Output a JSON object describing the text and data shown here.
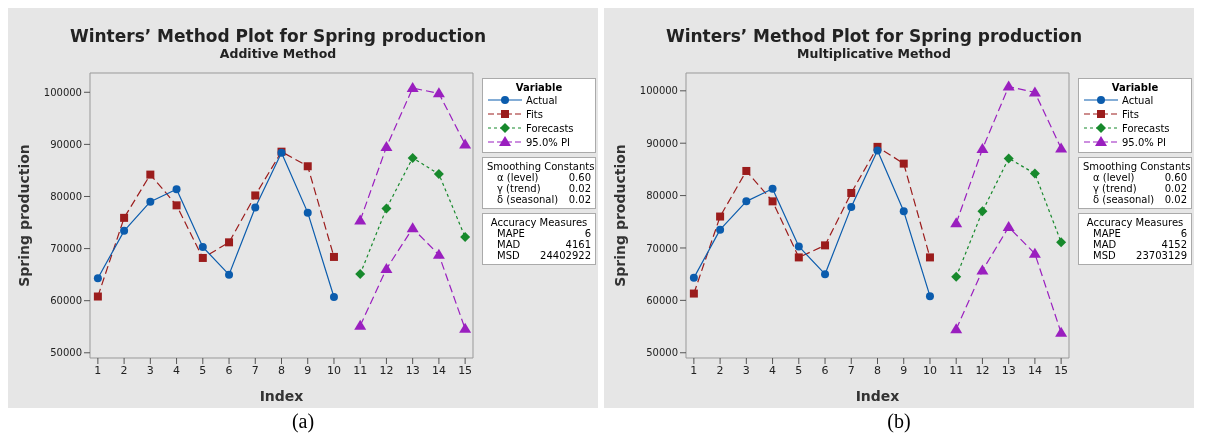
{
  "chart_data": [
    {
      "type": "line",
      "title": "Winters’ Method Plot for Spring production",
      "subtitle": "Additive Method",
      "xlabel": "Index",
      "ylabel": "Spring production",
      "legend_title": "Variable",
      "legend": "right",
      "xlim": [
        0.7,
        15.3
      ],
      "xticks": [
        1,
        2,
        3,
        4,
        5,
        6,
        7,
        8,
        9,
        10,
        11,
        12,
        13,
        14,
        15
      ],
      "ylim": [
        49000,
        103700
      ],
      "yticks": [
        50000,
        60000,
        70000,
        80000,
        90000,
        100000
      ],
      "series": [
        {
          "name": "Actual",
          "color": "#0b5cad",
          "marker": "circle",
          "line_style": "solid",
          "x": [
            1,
            2,
            3,
            4,
            5,
            6,
            7,
            8,
            9,
            10
          ],
          "values": [
            64300,
            73400,
            79000,
            81400,
            70300,
            65000,
            77900,
            88400,
            76900,
            60700
          ]
        },
        {
          "name": "Fits",
          "color": "#9b1c1c",
          "marker": "square",
          "line_style": "dashed",
          "x": [
            1,
            2,
            3,
            4,
            5,
            6,
            7,
            8,
            9,
            10
          ],
          "values": [
            60800,
            75900,
            84200,
            78300,
            68200,
            71200,
            80200,
            88600,
            85800,
            68400
          ]
        },
        {
          "name": "Forecasts",
          "color": "#17892c",
          "marker": "diamond",
          "line_style": "dotted",
          "x": [
            11,
            12,
            13,
            14,
            15
          ],
          "values": [
            65100,
            77700,
            87400,
            84300,
            72200
          ]
        },
        {
          "name": "95.0% PI",
          "color": "#9a1fbf",
          "marker": "triangle",
          "line_style": "dashed",
          "x": [
            11,
            12,
            13,
            14,
            15
          ],
          "values": [
            75400,
            89500,
            100800,
            99800,
            90000
          ]
        },
        {
          "color": "#9a1fbf",
          "marker": "triangle",
          "line_style": "dashed",
          "x": [
            11,
            12,
            13,
            14,
            15
          ],
          "values": [
            55200,
            66100,
            73900,
            68800,
            54600
          ]
        }
      ],
      "annotations": [
        "Smoothing Constants",
        "α (level)",
        "0.60",
        "γ (trend)",
        "0.02",
        "δ (seasonal)",
        "0.02",
        "Accuracy Measures",
        "MAPE",
        "6",
        "MAD",
        "4161",
        "MSD",
        "24402922",
        "(a)"
      ]
    },
    {
      "type": "line",
      "title": "Winters’ Method Plot for Spring production",
      "subtitle": "Multiplicative Method",
      "xlabel": "Index",
      "ylabel": "Spring production",
      "legend_title": "Variable",
      "legend": "right",
      "xlim": [
        0.7,
        15.3
      ],
      "xticks": [
        1,
        2,
        3,
        4,
        5,
        6,
        7,
        8,
        9,
        10,
        11,
        12,
        13,
        14,
        15
      ],
      "ylim": [
        49000,
        103400
      ],
      "yticks": [
        50000,
        60000,
        70000,
        80000,
        90000,
        100000
      ],
      "series": [
        {
          "name": "Actual",
          "color": "#0b5cad",
          "marker": "circle",
          "line_style": "solid",
          "x": [
            1,
            2,
            3,
            4,
            5,
            6,
            7,
            8,
            9,
            10
          ],
          "values": [
            64300,
            73500,
            78900,
            81300,
            70300,
            65000,
            77800,
            88600,
            77000,
            60800
          ]
        },
        {
          "name": "Fits",
          "color": "#9b1c1c",
          "marker": "square",
          "line_style": "dashed",
          "x": [
            1,
            2,
            3,
            4,
            5,
            6,
            7,
            8,
            9,
            10
          ],
          "values": [
            61300,
            76000,
            84700,
            78900,
            68200,
            70500,
            80500,
            89300,
            86100,
            68200
          ]
        },
        {
          "name": "Forecasts",
          "color": "#17892c",
          "marker": "diamond",
          "line_style": "dotted",
          "x": [
            11,
            12,
            13,
            14,
            15
          ],
          "values": [
            64500,
            77000,
            87100,
            84200,
            71100
          ]
        },
        {
          "name": "95.0% PI",
          "color": "#9a1fbf",
          "marker": "triangle",
          "line_style": "dashed",
          "x": [
            11,
            12,
            13,
            14,
            15
          ],
          "values": [
            74700,
            88900,
            100800,
            99700,
            89000
          ]
        },
        {
          "color": "#9a1fbf",
          "marker": "triangle",
          "line_style": "dashed",
          "x": [
            11,
            12,
            13,
            14,
            15
          ],
          "values": [
            54500,
            65700,
            74000,
            68900,
            53800
          ]
        }
      ],
      "annotations": [
        "Smoothing Constants",
        "α (level)",
        "0.60",
        "γ (trend)",
        "0.02",
        "δ (seasonal)",
        "0.02",
        "Accuracy Measures",
        "MAPE",
        "6",
        "MAD",
        "4152",
        "MSD",
        "23703129",
        "(b)"
      ]
    }
  ]
}
